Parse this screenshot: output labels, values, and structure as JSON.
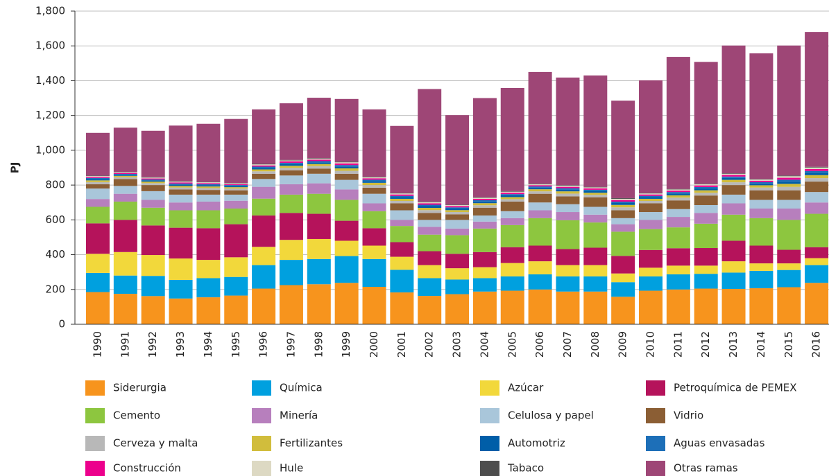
{
  "chart_data": {
    "type": "stacked_bar",
    "y_label": "PJ",
    "categories": [
      "1990",
      "1991",
      "1992",
      "1993",
      "1994",
      "1995",
      "1996",
      "1997",
      "1998",
      "1999",
      "2000",
      "2001",
      "2002",
      "2003",
      "2004",
      "2005",
      "2006",
      "2007",
      "2008",
      "2009",
      "2010",
      "2011",
      "2012",
      "2013",
      "2014",
      "2015",
      "2016"
    ],
    "ylim": [
      0,
      1800
    ],
    "yticks": [
      0,
      200,
      400,
      600,
      800,
      {
        "value": 1000,
        "label": "1,000"
      },
      {
        "value": 1200,
        "label": "1,200"
      },
      {
        "value": 1400,
        "label": "1,400"
      },
      {
        "value": 1600,
        "label": "1,600"
      },
      {
        "value": 1800,
        "label": "1,800"
      }
    ],
    "grid": true,
    "series": [
      {
        "name": "Siderurgia",
        "color": "#f7941d",
        "values": [
          185,
          175,
          162,
          148,
          155,
          165,
          205,
          225,
          230,
          238,
          215,
          183,
          163,
          173,
          188,
          193,
          200,
          188,
          188,
          158,
          193,
          200,
          205,
          203,
          207,
          213,
          238
        ]
      },
      {
        "name": "Química",
        "color": "#00a0df",
        "values": [
          110,
          105,
          116,
          107,
          110,
          107,
          135,
          145,
          145,
          154,
          160,
          130,
          102,
          84,
          77,
          82,
          87,
          87,
          87,
          84,
          82,
          87,
          85,
          94,
          100,
          99,
          102
        ]
      },
      {
        "name": "Azúcar",
        "color": "#f2d83b",
        "values": [
          110,
          135,
          120,
          123,
          105,
          113,
          105,
          115,
          115,
          88,
          77,
          75,
          75,
          65,
          63,
          77,
          75,
          65,
          65,
          50,
          50,
          50,
          47,
          65,
          43,
          38,
          40
        ]
      },
      {
        "name": "Petroquímica de PEMEX",
        "color": "#b5135b",
        "values": [
          175,
          185,
          170,
          177,
          182,
          190,
          180,
          155,
          145,
          115,
          100,
          84,
          80,
          83,
          87,
          91,
          90,
          92,
          100,
          101,
          102,
          100,
          101,
          118,
          102,
          78,
          63
        ]
      },
      {
        "name": "Cemento",
        "color": "#8dc63f",
        "values": [
          95,
          105,
          102,
          100,
          103,
          90,
          97,
          105,
          115,
          120,
          98,
          93,
          95,
          107,
          135,
          127,
          158,
          166,
          145,
          139,
          120,
          120,
          140,
          150,
          158,
          172,
          192
        ]
      },
      {
        "name": "Minería",
        "color": "#b77fbd",
        "values": [
          45,
          45,
          45,
          45,
          50,
          45,
          68,
          60,
          60,
          60,
          45,
          35,
          45,
          38,
          40,
          40,
          45,
          47,
          45,
          43,
          53,
          60,
          62,
          65,
          55,
          65,
          65
        ]
      },
      {
        "name": "Celulosa y papel",
        "color": "#a9c6da",
        "values": [
          60,
          45,
          50,
          45,
          40,
          35,
          45,
          50,
          55,
          55,
          55,
          55,
          40,
          50,
          35,
          40,
          45,
          45,
          45,
          35,
          45,
          45,
          45,
          50,
          50,
          50,
          60
        ]
      },
      {
        "name": "Vidrio",
        "color": "#8b5e34",
        "values": [
          25,
          40,
          35,
          30,
          27,
          25,
          30,
          30,
          30,
          35,
          35,
          40,
          40,
          32,
          45,
          55,
          50,
          45,
          55,
          45,
          50,
          50,
          55,
          55,
          55,
          55,
          60
        ]
      },
      {
        "name": "Cerveza y malta",
        "color": "#b8b8b8",
        "values": [
          12,
          10,
          11,
          11,
          11,
          10,
          14,
          14,
          14,
          17,
          15,
          14,
          16,
          13,
          14,
          14,
          14,
          16,
          14,
          17,
          14,
          16,
          16,
          16,
          16,
          20,
          20
        ]
      },
      {
        "name": "Fertilizantes",
        "color": "#d1bd3c",
        "values": [
          10,
          8,
          9,
          9,
          9,
          8,
          11,
          12,
          12,
          14,
          13,
          12,
          13,
          11,
          12,
          12,
          12,
          13,
          12,
          14,
          12,
          13,
          14,
          14,
          13,
          17,
          17
        ]
      },
      {
        "name": "Automotriz",
        "color": "#005ea8",
        "values": [
          8,
          6,
          7,
          8,
          7,
          7,
          9,
          10,
          10,
          11,
          10,
          10,
          10,
          9,
          10,
          10,
          9,
          10,
          10,
          11,
          10,
          11,
          11,
          11,
          10,
          14,
          14
        ]
      },
      {
        "name": "Aguas envasadas",
        "color": "#1d6fb8",
        "values": [
          6,
          5,
          5,
          6,
          6,
          5,
          7,
          7,
          7,
          8,
          8,
          7,
          8,
          7,
          7,
          7,
          7,
          8,
          7,
          8,
          7,
          8,
          8,
          8,
          8,
          10,
          10
        ]
      },
      {
        "name": "Construcción",
        "color": "#ec008c",
        "values": [
          6,
          5,
          6,
          6,
          6,
          5,
          7,
          8,
          8,
          9,
          8,
          8,
          8,
          7,
          8,
          8,
          7,
          8,
          8,
          9,
          8,
          8,
          9,
          9,
          8,
          11,
          11
        ]
      },
      {
        "name": "Hule",
        "color": "#ddd9c3",
        "values": [
          5,
          4,
          5,
          5,
          5,
          5,
          6,
          6,
          6,
          7,
          6,
          6,
          7,
          6,
          6,
          6,
          6,
          7,
          6,
          7,
          6,
          7,
          7,
          7,
          7,
          9,
          9
        ]
      },
      {
        "name": "Tabaco",
        "color": "#4d4d4d",
        "values": [
          3,
          2,
          2,
          2,
          2,
          2,
          3,
          3,
          3,
          4,
          3,
          3,
          3,
          3,
          3,
          3,
          3,
          3,
          3,
          4,
          3,
          3,
          3,
          3,
          3,
          4,
          4
        ]
      },
      {
        "name": "Otras ramas",
        "color": "#9e4676",
        "values": [
          245,
          255,
          267,
          320,
          334,
          368,
          313,
          325,
          347,
          360,
          387,
          385,
          647,
          514,
          570,
          593,
          642,
          618,
          640,
          560,
          647,
          759,
          700,
          734,
          722,
          747,
          775
        ]
      }
    ]
  }
}
